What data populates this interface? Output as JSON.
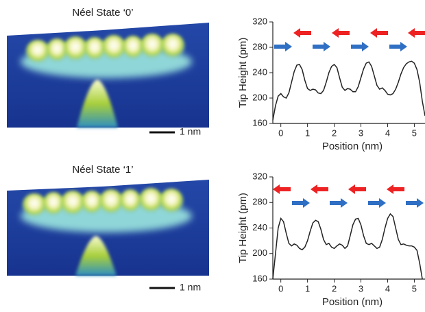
{
  "panels": [
    {
      "title": "Néel State ‘0’",
      "scale_bar": "1 nm"
    },
    {
      "title": "Néel State ‘1’",
      "scale_bar": "1 nm"
    }
  ],
  "chart_data": [
    {
      "type": "line",
      "x_label": "Position (nm)",
      "y_label": "Tip Height (pm)",
      "x": [
        -0.3,
        -0.2,
        -0.1,
        0,
        0.1,
        0.2,
        0.3,
        0.4,
        0.5,
        0.6,
        0.7,
        0.8,
        0.9,
        1.0,
        1.1,
        1.2,
        1.3,
        1.4,
        1.5,
        1.6,
        1.7,
        1.8,
        1.9,
        2.0,
        2.1,
        2.2,
        2.3,
        2.4,
        2.5,
        2.6,
        2.7,
        2.8,
        2.9,
        3.0,
        3.1,
        3.2,
        3.3,
        3.4,
        3.5,
        3.6,
        3.7,
        3.8,
        3.9,
        4.0,
        4.1,
        4.2,
        4.3,
        4.4,
        4.5,
        4.6,
        4.7,
        4.8,
        4.9,
        5.0,
        5.1,
        5.2,
        5.3,
        5.4
      ],
      "series": [
        {
          "color": "#222222",
          "values": [
            165,
            188,
            203,
            207,
            202,
            200,
            208,
            225,
            242,
            252,
            253,
            245,
            228,
            215,
            212,
            214,
            213,
            208,
            207,
            212,
            225,
            240,
            250,
            253,
            248,
            232,
            217,
            212,
            215,
            214,
            210,
            210,
            218,
            232,
            246,
            255,
            257,
            250,
            235,
            220,
            214,
            216,
            212,
            206,
            205,
            207,
            214,
            225,
            238,
            248,
            254,
            257,
            258,
            255,
            245,
            225,
            195,
            172
          ]
        }
      ],
      "xlim": [
        -0.3,
        5.4
      ],
      "ylim": [
        160,
        320
      ],
      "xticks": [
        0,
        1,
        2,
        3,
        4,
        5
      ],
      "yticks": [
        160,
        200,
        240,
        280,
        320
      ]
    },
    {
      "type": "line",
      "x_label": "Position (nm)",
      "y_label": "Tip Height (pm)",
      "x": [
        -0.3,
        -0.2,
        -0.1,
        0,
        0.1,
        0.2,
        0.3,
        0.4,
        0.5,
        0.6,
        0.7,
        0.8,
        0.9,
        1.0,
        1.1,
        1.2,
        1.3,
        1.4,
        1.5,
        1.6,
        1.7,
        1.8,
        1.9,
        2.0,
        2.1,
        2.2,
        2.3,
        2.4,
        2.5,
        2.6,
        2.7,
        2.8,
        2.9,
        3.0,
        3.1,
        3.2,
        3.3,
        3.4,
        3.5,
        3.6,
        3.7,
        3.8,
        3.9,
        4.0,
        4.1,
        4.2,
        4.3,
        4.4,
        4.5,
        4.6,
        4.7,
        4.8,
        4.9,
        5.0,
        5.1,
        5.2,
        5.3
      ],
      "series": [
        {
          "color": "#222222",
          "values": [
            160,
            200,
            240,
            255,
            250,
            232,
            216,
            212,
            215,
            213,
            208,
            206,
            210,
            220,
            235,
            248,
            252,
            250,
            238,
            222,
            214,
            216,
            210,
            208,
            212,
            215,
            213,
            208,
            212,
            228,
            245,
            254,
            255,
            245,
            228,
            216,
            214,
            216,
            212,
            208,
            210,
            222,
            240,
            255,
            262,
            258,
            240,
            222,
            214,
            215,
            213,
            212,
            212,
            210,
            205,
            185,
            160
          ]
        }
      ],
      "xlim": [
        -0.3,
        5.4
      ],
      "ylim": [
        160,
        320
      ],
      "xticks": [
        0,
        1,
        2,
        3,
        4,
        5
      ],
      "yticks": [
        160,
        200,
        240,
        280,
        320
      ]
    }
  ]
}
